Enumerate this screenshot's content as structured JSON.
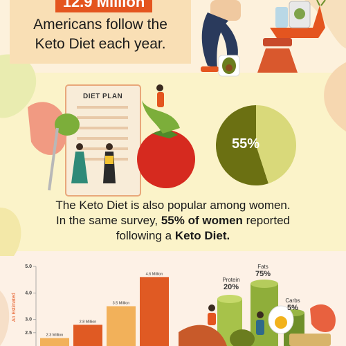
{
  "headline": {
    "number": "12.9 Million",
    "text_line1": "Americans follow the",
    "text_line2": "Keto Diet each year."
  },
  "diet_plan": {
    "title": "DIET PLAN"
  },
  "women_stat": {
    "line1": "The Keto Diet is also popular among women.",
    "line2_prefix": "In the same survey,",
    "line2_bold": "55% of women",
    "line2_suffix": "reported",
    "line3_prefix": "following a",
    "line3_bold": "Keto Diet."
  },
  "macros": {
    "protein_label": "Protein",
    "protein_pct": "20%",
    "fats_label": "Fats",
    "fats_pct": "75%",
    "carbs_label": "Carbs",
    "carbs_pct": "5%"
  },
  "colors": {
    "accent": "#e4551f",
    "pie_main": "#6b7012",
    "pie_rest": "#d9d97a",
    "bar_light": "#f2b15a",
    "bar_dark": "#e05a23"
  },
  "chart_data": [
    {
      "type": "pie",
      "values": [
        55,
        45
      ],
      "data_labels": [
        "55%",
        ""
      ]
    },
    {
      "type": "bar",
      "categories": [
        "",
        "",
        "",
        ""
      ],
      "values": [
        2.3,
        2.8,
        3.5,
        4.6
      ],
      "data_labels": [
        "2.3 Million",
        "2.8 Million",
        "3.5 Million",
        "4.6 Million"
      ],
      "ylabel": "An Estimated",
      "yticks": [
        "5.0",
        "4.0",
        "3.0",
        "2.5"
      ],
      "ylim": [
        2.0,
        5.0
      ],
      "grid": false
    }
  ]
}
